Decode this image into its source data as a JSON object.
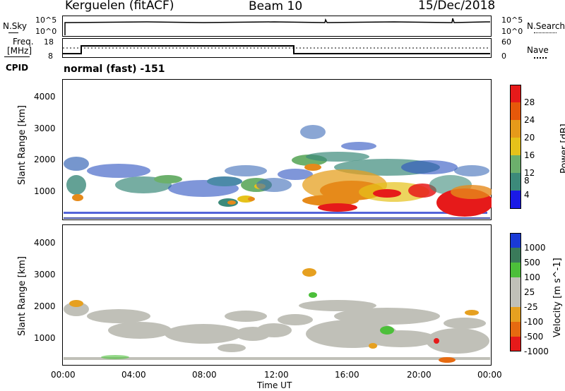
{
  "header": {
    "station": "Kerguelen (fitACF)",
    "beam": "Beam 10",
    "date": "15/Dec/2018"
  },
  "top_panels": {
    "nsky_label": "N.Sky",
    "nsky_ticks": [
      "10^5",
      "10^0"
    ],
    "nsearch_label": "N.Search",
    "nsearch_ticks": [
      "10^5",
      "10^0"
    ],
    "freq_label_1": "Freq.",
    "freq_label_2": "[MHz]",
    "freq_ticks": [
      "18",
      "8"
    ],
    "nave_label": "Nave",
    "nave_ticks": [
      "60",
      "0"
    ],
    "cpid_label": "CPID",
    "cpid_text": "normal (fast) -151"
  },
  "chart_data": [
    {
      "type": "heatmap",
      "title": "",
      "xlabel": "",
      "ylabel": "Slant Range [km]",
      "yticks": [
        "1000",
        "2000",
        "3000",
        "4000"
      ],
      "ylim": [
        180,
        4500
      ],
      "colorbar_label": "Power [dB]",
      "colorbar_ticks": [
        "4",
        "8",
        "12",
        "16",
        "20",
        "24",
        "28"
      ],
      "colors": [
        "#1a1ae6",
        "#2b5cc8",
        "#3d8a8a",
        "#6cb06c",
        "#e6c21a",
        "#e68a1a",
        "#e61a1a"
      ]
    },
    {
      "type": "heatmap",
      "title": "",
      "xlabel": "Time UT",
      "ylabel": "Slant Range [km]",
      "yticks": [
        "1000",
        "2000",
        "3000",
        "4000"
      ],
      "ylim": [
        180,
        4500
      ],
      "colorbar_label": "Velocity [m s^-1]",
      "colorbar_ticks": [
        "1000",
        "500",
        "100",
        "25",
        "-25",
        "-100",
        "-500",
        "-1000"
      ],
      "colors": [
        "#1a3ad6",
        "#3a7a5a",
        "#4cbf3a",
        "#c0c0b8",
        "#c0c0b8",
        "#e6a020",
        "#e66a10",
        "#e61a1a"
      ]
    }
  ],
  "xaxis": {
    "ticks": [
      "00:00",
      "04:00",
      "08:00",
      "12:00",
      "16:00",
      "20:00",
      "00:00"
    ],
    "label": "Time UT"
  }
}
